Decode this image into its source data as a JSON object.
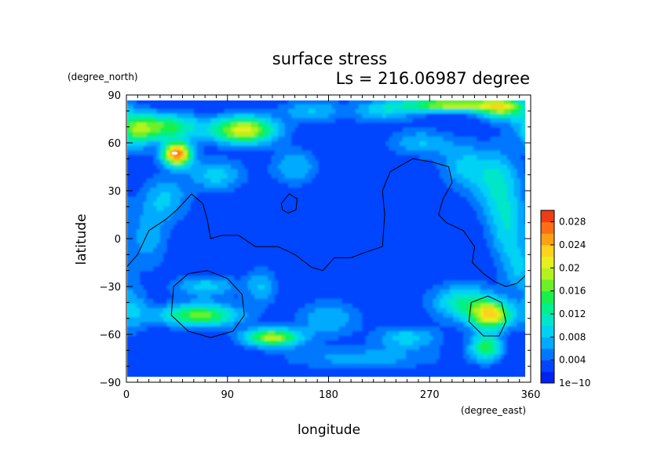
{
  "chart_data": {
    "type": "heatmap",
    "title": "surface stress",
    "subtitle": "Ls = 216.06987 degree",
    "xlabel": "longitude",
    "ylabel": "latitude",
    "x_unit": "(degree_east)",
    "y_unit": "(degree_north)",
    "xlim": [
      0,
      360
    ],
    "ylim": [
      -90,
      90
    ],
    "x_ticks": [
      "0",
      "90",
      "180",
      "270",
      "360"
    ],
    "y_ticks": [
      "90",
      "60",
      "30",
      "0",
      "−30",
      "−60",
      "−90"
    ],
    "colorbar": {
      "min": 0,
      "max": 0.03,
      "tick_labels": [
        "0.028",
        "0.024",
        "0.02",
        "0.016",
        "0.012",
        "0.008",
        "0.004",
        "1e−10"
      ],
      "colors": [
        "#0022ee",
        "#0044ff",
        "#0077ff",
        "#00aaff",
        "#00d2f4",
        "#00e6c8",
        "#00f08c",
        "#19f04a",
        "#6cf028",
        "#b4f21e",
        "#e6f01e",
        "#ffd21e",
        "#ffa014",
        "#ff6e14",
        "#f03c14"
      ]
    },
    "field": {
      "background": 0.002,
      "blobs": [
        {
          "lon": 30,
          "lat": 70,
          "amp": 0.014,
          "slon": 25,
          "slat": 6
        },
        {
          "lon": 45,
          "lat": 53,
          "amp": 0.026,
          "slon": 9,
          "slat": 5
        },
        {
          "lon": 105,
          "lat": 68,
          "amp": 0.019,
          "slon": 20,
          "slat": 6
        },
        {
          "lon": 8,
          "lat": 66,
          "amp": 0.008,
          "slon": 10,
          "slat": 8
        },
        {
          "lon": 80,
          "lat": 40,
          "amp": 0.007,
          "slon": 18,
          "slat": 7
        },
        {
          "lon": 35,
          "lat": 25,
          "amp": 0.006,
          "slon": 15,
          "slat": 10
        },
        {
          "lon": 20,
          "lat": 0,
          "amp": 0.005,
          "slon": 12,
          "slat": 14
        },
        {
          "lon": 150,
          "lat": 45,
          "amp": 0.006,
          "slon": 15,
          "slat": 8
        },
        {
          "lon": 165,
          "lat": 80,
          "amp": 0.006,
          "slon": 20,
          "slat": 5
        },
        {
          "lon": 230,
          "lat": 80,
          "amp": 0.007,
          "slon": 20,
          "slat": 5
        },
        {
          "lon": 290,
          "lat": 84,
          "amp": 0.018,
          "slon": 30,
          "slat": 3
        },
        {
          "lon": 335,
          "lat": 82,
          "amp": 0.015,
          "slon": 15,
          "slat": 5
        },
        {
          "lon": 262,
          "lat": 60,
          "amp": 0.006,
          "slon": 20,
          "slat": 6
        },
        {
          "lon": 300,
          "lat": 45,
          "amp": 0.006,
          "slon": 15,
          "slat": 10
        },
        {
          "lon": 330,
          "lat": 35,
          "amp": 0.008,
          "slon": 15,
          "slat": 15
        },
        {
          "lon": 340,
          "lat": 5,
          "amp": 0.007,
          "slon": 12,
          "slat": 15
        },
        {
          "lon": 5,
          "lat": -45,
          "amp": 0.006,
          "slon": 10,
          "slat": 10
        },
        {
          "lon": 65,
          "lat": -48,
          "amp": 0.015,
          "slon": 25,
          "slat": 5
        },
        {
          "lon": 70,
          "lat": -30,
          "amp": 0.007,
          "slon": 20,
          "slat": 5
        },
        {
          "lon": 130,
          "lat": -62,
          "amp": 0.017,
          "slon": 18,
          "slat": 4
        },
        {
          "lon": 120,
          "lat": -30,
          "amp": 0.006,
          "slon": 10,
          "slat": 8
        },
        {
          "lon": 180,
          "lat": -50,
          "amp": 0.006,
          "slon": 20,
          "slat": 8
        },
        {
          "lon": 250,
          "lat": -62,
          "amp": 0.007,
          "slon": 20,
          "slat": 5
        },
        {
          "lon": 210,
          "lat": -75,
          "amp": 0.005,
          "slon": 50,
          "slat": 5
        },
        {
          "lon": 300,
          "lat": -40,
          "amp": 0.01,
          "slon": 20,
          "slat": 8
        },
        {
          "lon": 325,
          "lat": -48,
          "amp": 0.019,
          "slon": 13,
          "slat": 6
        },
        {
          "lon": 320,
          "lat": -68,
          "amp": 0.013,
          "slon": 10,
          "slat": 6
        },
        {
          "lon": 350,
          "lat": -20,
          "amp": 0.005,
          "slon": 10,
          "slat": 10
        }
      ]
    },
    "contours": [
      {
        "points": [
          [
            0,
            -18
          ],
          [
            10,
            -10
          ],
          [
            20,
            5
          ],
          [
            35,
            12
          ],
          [
            45,
            18
          ],
          [
            58,
            28
          ],
          [
            68,
            22
          ],
          [
            72,
            12
          ],
          [
            75,
            0
          ],
          [
            85,
            2
          ],
          [
            100,
            2
          ],
          [
            115,
            -5
          ],
          [
            135,
            -5
          ],
          [
            150,
            -10
          ],
          [
            165,
            -18
          ],
          [
            175,
            -20
          ],
          [
            185,
            -12
          ],
          [
            200,
            -12
          ],
          [
            215,
            -8
          ],
          [
            228,
            -5
          ],
          [
            230,
            15
          ],
          [
            228,
            30
          ],
          [
            235,
            42
          ],
          [
            255,
            50
          ],
          [
            272,
            48
          ],
          [
            287,
            45
          ],
          [
            290,
            35
          ],
          [
            282,
            25
          ],
          [
            278,
            15
          ],
          [
            285,
            10
          ],
          [
            300,
            5
          ],
          [
            310,
            -5
          ],
          [
            308,
            -15
          ],
          [
            318,
            -22
          ],
          [
            328,
            -27
          ],
          [
            338,
            -30
          ],
          [
            348,
            -28
          ],
          [
            360,
            -20
          ]
        ],
        "closed": false
      },
      {
        "points": [
          [
            138,
            22
          ],
          [
            145,
            28
          ],
          [
            152,
            25
          ],
          [
            151,
            18
          ],
          [
            144,
            16
          ],
          [
            139,
            18
          ]
        ],
        "closed": true
      },
      {
        "points": [
          [
            72,
            -20
          ],
          [
            90,
            -25
          ],
          [
            103,
            -35
          ],
          [
            105,
            -48
          ],
          [
            95,
            -58
          ],
          [
            75,
            -62
          ],
          [
            55,
            -58
          ],
          [
            40,
            -48
          ],
          [
            42,
            -30
          ],
          [
            55,
            -22
          ]
        ],
        "closed": true
      },
      {
        "points": [
          [
            322,
            -36
          ],
          [
            334,
            -40
          ],
          [
            338,
            -52
          ],
          [
            332,
            -61
          ],
          [
            318,
            -61
          ],
          [
            305,
            -52
          ],
          [
            307,
            -40
          ]
        ],
        "closed": true
      }
    ]
  }
}
